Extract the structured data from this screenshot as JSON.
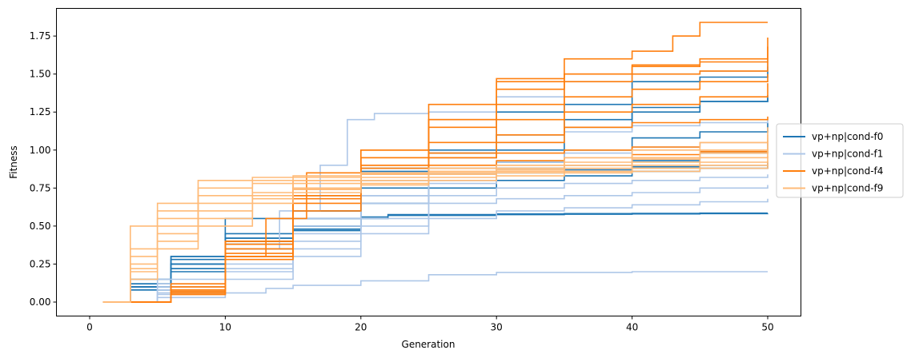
{
  "chart_data": {
    "type": "line",
    "title": "",
    "xlabel": "Generation",
    "ylabel": "Fitness",
    "xlim": [
      -2.45,
      52.45
    ],
    "ylim": [
      -0.092,
      1.932
    ],
    "xticks": [
      0,
      10,
      20,
      30,
      40,
      50
    ],
    "yticks": [
      0.0,
      0.25,
      0.5,
      0.75,
      1.0,
      1.25,
      1.5,
      1.75
    ],
    "ytick_labels": [
      "0.00",
      "0.25",
      "0.50",
      "0.75",
      "1.00",
      "1.25",
      "1.50",
      "1.75"
    ],
    "grid": false,
    "legend": {
      "placement": "right-outside",
      "entries": [
        "vp+np|cond-f0",
        "vp+np|cond-f1",
        "vp+np|cond-f4",
        "vp+np|cond-f9"
      ]
    },
    "colors": {
      "vp+np|cond-f0": "#1f77b4",
      "vp+np|cond-f1": "#aec7e8",
      "vp+np|cond-f4": "#ff7f0e",
      "vp+np|cond-f9": "#ffbb78"
    },
    "series": [
      {
        "name": "vp+np|cond-f0",
        "color": "#1f77b4",
        "runs": [
          {
            "x": [
              1,
              3,
              6,
              10,
              15,
              20,
              25,
              30,
              35,
              40,
              45,
              50
            ],
            "y": [
              0,
              0.1,
              0.25,
              0.42,
              0.55,
              0.85,
              1.0,
              1.25,
              1.3,
              1.45,
              1.48,
              1.55
            ]
          },
          {
            "x": [
              1,
              3,
              6,
              10,
              15,
              20,
              25,
              30,
              35,
              40,
              45,
              50
            ],
            "y": [
              0,
              0.08,
              0.22,
              0.4,
              0.6,
              0.86,
              0.98,
              1.1,
              1.2,
              1.28,
              1.32,
              1.36
            ]
          },
          {
            "x": [
              1,
              3,
              6,
              10,
              15,
              20,
              25,
              30,
              35,
              40,
              45,
              50
            ],
            "y": [
              0,
              0.12,
              0.28,
              0.55,
              0.7,
              0.88,
              0.95,
              1.0,
              1.15,
              1.25,
              1.32,
              1.34
            ]
          },
          {
            "x": [
              1,
              3,
              6,
              10,
              15,
              20,
              25,
              30,
              35,
              40,
              45,
              50
            ],
            "y": [
              0,
              0.15,
              0.3,
              0.45,
              0.6,
              0.8,
              0.88,
              0.92,
              1.0,
              1.08,
              1.12,
              1.18
            ]
          },
          {
            "x": [
              1,
              3,
              6,
              10,
              15,
              20,
              25,
              30,
              35,
              40,
              45,
              50
            ],
            "y": [
              0,
              0.1,
              0.25,
              0.4,
              0.55,
              0.75,
              0.85,
              0.88,
              0.9,
              0.93,
              0.98,
              1.05
            ]
          },
          {
            "x": [
              1,
              3,
              6,
              10,
              15,
              20,
              25,
              30,
              35,
              40,
              45,
              50
            ],
            "y": [
              0,
              0.08,
              0.2,
              0.38,
              0.5,
              0.7,
              0.8,
              0.85,
              0.87,
              0.89,
              0.9,
              0.92
            ]
          },
          {
            "x": [
              1,
              3,
              6,
              10,
              15,
              20,
              25,
              30,
              35,
              40,
              45,
              50
            ],
            "y": [
              0,
              0.1,
              0.22,
              0.35,
              0.48,
              0.65,
              0.75,
              0.8,
              0.83,
              0.86,
              0.88,
              0.9
            ]
          },
          {
            "x": [
              1,
              3,
              6,
              10,
              15,
              20,
              22,
              30,
              35,
              40,
              45,
              50
            ],
            "y": [
              0,
              0.12,
              0.3,
              0.42,
              0.5,
              0.56,
              0.575,
              0.58,
              0.582,
              0.583,
              0.585,
              0.585
            ]
          },
          {
            "x": [
              1,
              3,
              6,
              10,
              15,
              20,
              22,
              30,
              35,
              40,
              45,
              50
            ],
            "y": [
              0,
              0.1,
              0.25,
              0.38,
              0.47,
              0.55,
              0.57,
              0.575,
              0.578,
              0.58,
              0.582,
              0.583
            ]
          }
        ]
      },
      {
        "name": "vp+np|cond-f1",
        "color": "#aec7e8",
        "runs": [
          {
            "x": [
              1,
              5,
              10,
              14,
              17,
              19,
              21,
              25,
              30,
              35,
              40,
              45,
              50
            ],
            "y": [
              0,
              0.15,
              0.35,
              0.6,
              0.9,
              1.2,
              1.24,
              1.25,
              1.35,
              1.45,
              1.5,
              1.52,
              1.6
            ]
          },
          {
            "x": [
              1,
              5,
              10,
              15,
              20,
              25,
              30,
              35,
              40,
              45,
              50
            ],
            "y": [
              0,
              0.1,
              0.3,
              0.55,
              0.8,
              0.95,
              1.05,
              1.12,
              1.16,
              1.18,
              1.2
            ]
          },
          {
            "x": [
              1,
              5,
              10,
              15,
              20,
              25,
              30,
              35,
              40,
              45,
              50
            ],
            "y": [
              0,
              0.12,
              0.3,
              0.5,
              0.7,
              0.85,
              0.92,
              0.98,
              1.02,
              1.05,
              1.08
            ]
          },
          {
            "x": [
              1,
              5,
              10,
              15,
              20,
              25,
              30,
              35,
              40,
              45,
              50
            ],
            "y": [
              0,
              0.08,
              0.25,
              0.45,
              0.65,
              0.78,
              0.85,
              0.9,
              0.95,
              1.0,
              1.03
            ]
          },
          {
            "x": [
              1,
              5,
              10,
              15,
              20,
              25,
              30,
              35,
              40,
              45,
              50
            ],
            "y": [
              0,
              0.1,
              0.22,
              0.4,
              0.55,
              0.7,
              0.75,
              0.78,
              0.8,
              0.82,
              0.84
            ]
          },
          {
            "x": [
              1,
              5,
              10,
              15,
              20,
              25,
              30,
              35,
              40,
              45,
              50
            ],
            "y": [
              0,
              0.06,
              0.2,
              0.35,
              0.5,
              0.65,
              0.68,
              0.7,
              0.72,
              0.75,
              0.77
            ]
          },
          {
            "x": [
              1,
              5,
              10,
              15,
              20,
              25,
              30,
              35,
              40,
              45,
              50
            ],
            "y": [
              0,
              0.05,
              0.15,
              0.3,
              0.45,
              0.55,
              0.6,
              0.62,
              0.64,
              0.66,
              0.68
            ]
          },
          {
            "x": [
              1,
              5,
              10,
              13,
              15,
              20,
              25,
              30,
              40,
              50
            ],
            "y": [
              0,
              0.03,
              0.06,
              0.09,
              0.11,
              0.14,
              0.18,
              0.195,
              0.2,
              0.2
            ]
          }
        ]
      },
      {
        "name": "vp+np|cond-f4",
        "color": "#ff7f0e",
        "runs": [
          {
            "x": [
              1,
              6,
              10,
              13,
              16,
              20,
              25,
              30,
              35,
              40,
              43,
              45,
              50
            ],
            "y": [
              0,
              0.05,
              0.3,
              0.55,
              0.85,
              1.0,
              1.2,
              1.45,
              1.6,
              1.65,
              1.75,
              1.84,
              1.84
            ]
          },
          {
            "x": [
              1,
              6,
              10,
              15,
              20,
              25,
              30,
              35,
              40,
              45,
              50
            ],
            "y": [
              0,
              0.08,
              0.3,
              0.7,
              0.95,
              1.3,
              1.47,
              1.5,
              1.55,
              1.6,
              1.74
            ]
          },
          {
            "x": [
              1,
              6,
              10,
              15,
              20,
              25,
              30,
              35,
              40,
              45,
              50
            ],
            "y": [
              0,
              0.06,
              0.35,
              0.75,
              0.95,
              1.2,
              1.4,
              1.5,
              1.56,
              1.58,
              1.68
            ]
          },
          {
            "x": [
              1,
              6,
              10,
              15,
              20,
              25,
              30,
              35,
              40,
              45,
              50
            ],
            "y": [
              0,
              0.1,
              0.4,
              0.8,
              1.0,
              1.15,
              1.3,
              1.45,
              1.5,
              1.52,
              1.58
            ]
          },
          {
            "x": [
              1,
              6,
              10,
              15,
              20,
              25,
              30,
              35,
              40,
              45,
              50
            ],
            "y": [
              0,
              0.12,
              0.38,
              0.7,
              0.9,
              1.05,
              1.2,
              1.35,
              1.4,
              1.45,
              1.5
            ]
          },
          {
            "x": [
              1,
              6,
              10,
              15,
              20,
              25,
              30,
              35,
              40,
              45,
              50
            ],
            "y": [
              0,
              0.08,
              0.32,
              0.68,
              0.88,
              0.98,
              1.1,
              1.25,
              1.3,
              1.35,
              1.44
            ]
          },
          {
            "x": [
              1,
              6,
              10,
              15,
              20,
              25,
              30,
              35,
              40,
              45,
              50
            ],
            "y": [
              0,
              0.05,
              0.28,
              0.6,
              0.85,
              0.95,
              1.05,
              1.15,
              1.18,
              1.2,
              1.22
            ]
          },
          {
            "x": [
              1,
              6,
              10,
              15,
              20,
              25,
              30,
              35,
              40,
              45,
              50
            ],
            "y": [
              0,
              0.1,
              0.4,
              0.75,
              0.9,
              0.95,
              0.98,
              1.0,
              1.02,
              1.05,
              1.06
            ]
          },
          {
            "x": [
              1,
              6,
              10,
              15,
              20,
              25,
              30,
              35,
              40,
              45,
              50
            ],
            "y": [
              0,
              0.07,
              0.3,
              0.65,
              0.85,
              0.9,
              0.93,
              0.95,
              0.97,
              0.99,
              1.0
            ]
          }
        ]
      },
      {
        "name": "vp+np|cond-f9",
        "color": "#ffbb78",
        "runs": [
          {
            "x": [
              1,
              3,
              5,
              8,
              12,
              15,
              20,
              25,
              30,
              35,
              40,
              45,
              50
            ],
            "y": [
              0,
              0.5,
              0.65,
              0.8,
              0.82,
              0.83,
              0.85,
              0.88,
              0.9,
              0.92,
              0.95,
              1.0,
              1.1
            ]
          },
          {
            "x": [
              1,
              3,
              5,
              8,
              12,
              15,
              20,
              25,
              30,
              35,
              40,
              45,
              50
            ],
            "y": [
              0,
              0.35,
              0.6,
              0.75,
              0.8,
              0.82,
              0.85,
              0.88,
              0.9,
              0.95,
              1.0,
              1.05,
              1.15
            ]
          },
          {
            "x": [
              1,
              3,
              5,
              8,
              12,
              15,
              20,
              25,
              30,
              35,
              40,
              45,
              50
            ],
            "y": [
              0,
              0.3,
              0.55,
              0.7,
              0.78,
              0.8,
              0.84,
              0.86,
              0.88,
              0.9,
              0.94,
              0.98,
              1.05
            ]
          },
          {
            "x": [
              1,
              3,
              5,
              8,
              12,
              15,
              20,
              25,
              30,
              35,
              40,
              45,
              50
            ],
            "y": [
              0,
              0.25,
              0.5,
              0.65,
              0.72,
              0.78,
              0.82,
              0.85,
              0.87,
              0.9,
              0.92,
              0.95,
              1.0
            ]
          },
          {
            "x": [
              1,
              3,
              5,
              8,
              12,
              15,
              20,
              25,
              30,
              35,
              40,
              45,
              50
            ],
            "y": [
              0,
              0.22,
              0.45,
              0.6,
              0.7,
              0.75,
              0.8,
              0.84,
              0.86,
              0.88,
              0.9,
              0.92,
              0.96
            ]
          },
          {
            "x": [
              1,
              3,
              5,
              8,
              12,
              15,
              20,
              25,
              30,
              35,
              40,
              45,
              50
            ],
            "y": [
              0,
              0.2,
              0.4,
              0.55,
              0.68,
              0.74,
              0.78,
              0.82,
              0.85,
              0.86,
              0.88,
              0.9,
              0.93
            ]
          },
          {
            "x": [
              1,
              3,
              5,
              8,
              12,
              15,
              20,
              25,
              30,
              35,
              40,
              45,
              50
            ],
            "y": [
              0,
              0.15,
              0.35,
              0.5,
              0.65,
              0.72,
              0.77,
              0.8,
              0.83,
              0.85,
              0.86,
              0.88,
              0.9
            ]
          }
        ]
      }
    ]
  }
}
